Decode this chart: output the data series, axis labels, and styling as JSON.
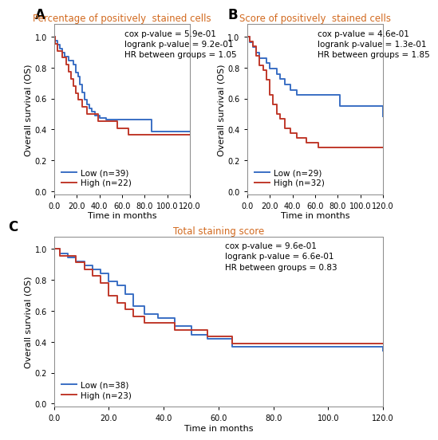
{
  "panels": [
    {
      "label": "A",
      "title": "Percentage of positively  stained cells",
      "stats_line1": "cox p-value = 5.9e-01",
      "stats_line2": "logrank p-value = 9.2e-01",
      "stats_line3": "HR between groups = 1.05",
      "low_label": "Low (n=39)",
      "high_label": "High (n=22)",
      "low_color": "#3a6fc4",
      "high_color": "#c0392b",
      "low_x": [
        0,
        1,
        3,
        5,
        7,
        9,
        11,
        13,
        15,
        17,
        19,
        21,
        23,
        25,
        27,
        29,
        31,
        33,
        36,
        40,
        46,
        51,
        56,
        61,
        66,
        81,
        86,
        120
      ],
      "low_y": [
        1.0,
        0.974,
        0.949,
        0.923,
        0.897,
        0.872,
        0.872,
        0.846,
        0.846,
        0.821,
        0.769,
        0.744,
        0.692,
        0.641,
        0.59,
        0.564,
        0.538,
        0.513,
        0.487,
        0.474,
        0.462,
        0.462,
        0.462,
        0.462,
        0.462,
        0.462,
        0.385,
        0.385
      ],
      "high_x": [
        0,
        1,
        3,
        5,
        7,
        9,
        11,
        13,
        15,
        17,
        19,
        21,
        23,
        25,
        27,
        29,
        34,
        39,
        51,
        56,
        61,
        66,
        86,
        120
      ],
      "high_y": [
        1.0,
        0.955,
        0.909,
        0.909,
        0.864,
        0.864,
        0.818,
        0.773,
        0.727,
        0.682,
        0.636,
        0.591,
        0.591,
        0.545,
        0.545,
        0.5,
        0.5,
        0.455,
        0.455,
        0.409,
        0.409,
        0.364,
        0.364,
        0.364
      ]
    },
    {
      "label": "B",
      "title": "Score of positively  stained cells",
      "stats_line1": "cox p-value = 4.6e-01",
      "stats_line2": "logrank p-value = 1.3e-01",
      "stats_line3": "HR between groups = 1.85",
      "low_label": "Low (n=29)",
      "high_label": "High (n=32)",
      "low_color": "#3a6fc4",
      "high_color": "#c0392b",
      "low_x": [
        0,
        2,
        5,
        8,
        11,
        14,
        17,
        20,
        23,
        26,
        29,
        33,
        38,
        44,
        52,
        58,
        63,
        82,
        120
      ],
      "low_y": [
        1.0,
        0.966,
        0.931,
        0.897,
        0.862,
        0.862,
        0.828,
        0.793,
        0.793,
        0.759,
        0.724,
        0.69,
        0.655,
        0.621,
        0.621,
        0.621,
        0.621,
        0.552,
        0.483
      ],
      "high_x": [
        0,
        2,
        5,
        8,
        11,
        14,
        17,
        20,
        23,
        26,
        29,
        33,
        38,
        44,
        52,
        58,
        63,
        120
      ],
      "high_y": [
        1.0,
        0.969,
        0.938,
        0.875,
        0.813,
        0.781,
        0.719,
        0.625,
        0.563,
        0.5,
        0.469,
        0.406,
        0.375,
        0.344,
        0.313,
        0.313,
        0.281,
        0.281
      ]
    },
    {
      "label": "C",
      "title": "Total staining score",
      "stats_line1": "cox p-value = 9.6e-01",
      "stats_line2": "logrank p-value = 6.6e-01",
      "stats_line3": "HR between groups = 0.83",
      "low_label": "Low (n=38)",
      "high_label": "High (n=23)",
      "low_color": "#3a6fc4",
      "high_color": "#c0392b",
      "low_x": [
        0,
        2,
        5,
        8,
        11,
        14,
        17,
        20,
        23,
        26,
        29,
        33,
        38,
        44,
        50,
        56,
        65,
        120
      ],
      "low_y": [
        1.0,
        0.974,
        0.947,
        0.921,
        0.895,
        0.868,
        0.842,
        0.789,
        0.763,
        0.711,
        0.632,
        0.579,
        0.553,
        0.5,
        0.447,
        0.421,
        0.368,
        0.342
      ],
      "high_x": [
        0,
        2,
        5,
        8,
        11,
        14,
        17,
        20,
        23,
        26,
        29,
        33,
        38,
        44,
        50,
        56,
        65,
        120
      ],
      "high_y": [
        1.0,
        0.957,
        0.957,
        0.913,
        0.87,
        0.826,
        0.783,
        0.696,
        0.652,
        0.609,
        0.565,
        0.522,
        0.522,
        0.478,
        0.478,
        0.435,
        0.391,
        0.391
      ]
    }
  ],
  "title_color": "#D2691E",
  "stats_fontsize": 7.5,
  "title_fontsize": 8.5,
  "label_fontsize": 12,
  "axis_label_fontsize": 8,
  "tick_fontsize": 7,
  "legend_fontsize": 7.5,
  "xlim": [
    0,
    120
  ],
  "ylim": [
    -0.02,
    1.08
  ],
  "xticks": [
    0.0,
    20.0,
    40.0,
    60.0,
    80.0,
    100.0,
    120.0
  ],
  "yticks": [
    0.0,
    0.2,
    0.4,
    0.6,
    0.8,
    1.0
  ],
  "xlabel": "Time in months",
  "ylabel": "Overall survival (OS)",
  "background_color": "#ffffff",
  "line_width": 1.4
}
